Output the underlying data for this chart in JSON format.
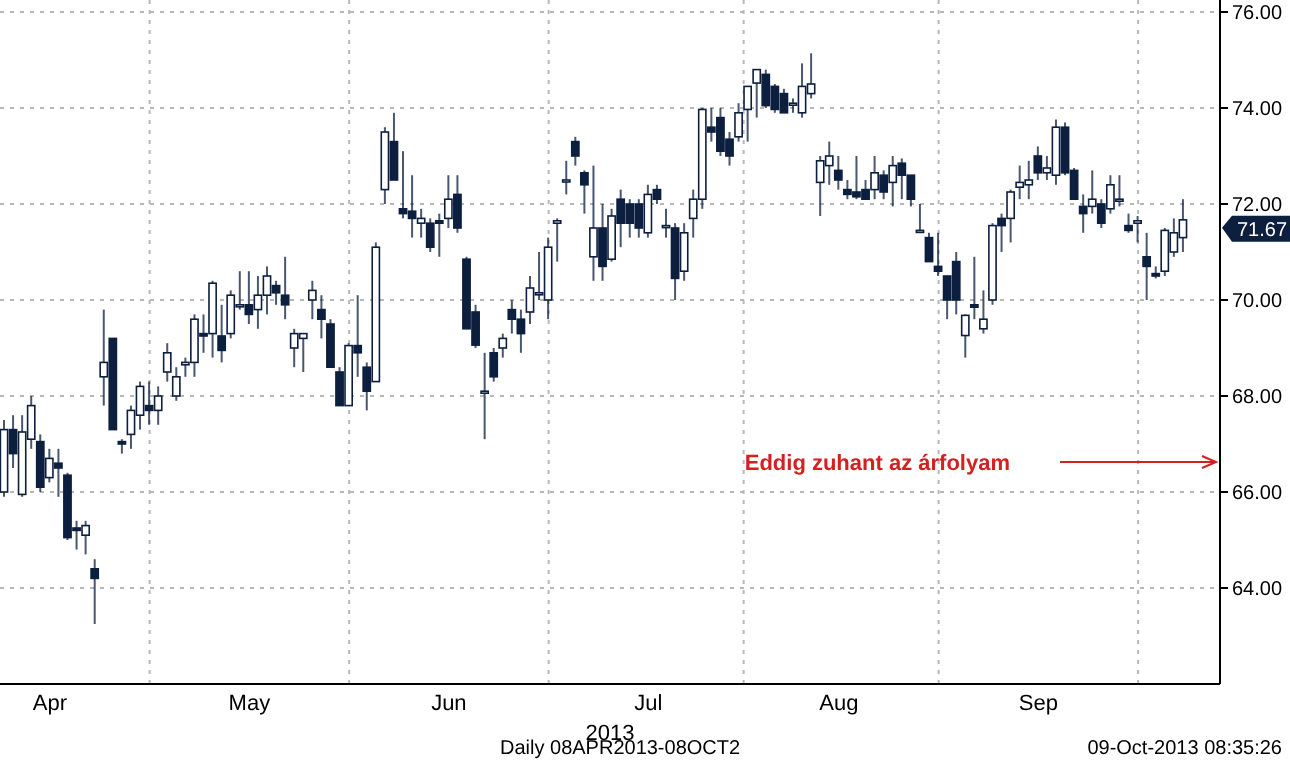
{
  "chart_data": {
    "type": "candlestick",
    "xlabel": "2013",
    "categories": [
      null,
      null,
      null,
      null,
      null,
      "Apr",
      null,
      null,
      null,
      null,
      null,
      null,
      null,
      null,
      null,
      null,
      null,
      null,
      null,
      null,
      null,
      null,
      null,
      null,
      null,
      null,
      null,
      "May",
      null,
      null,
      null,
      null,
      null,
      null,
      null,
      null,
      null,
      null,
      null,
      null,
      null,
      null,
      null,
      null,
      null,
      null,
      null,
      null,
      null,
      "Jun",
      null,
      null,
      null,
      null,
      null,
      null,
      null,
      null,
      null,
      null,
      null,
      null,
      null,
      null,
      null,
      null,
      null,
      null,
      null,
      null,
      null,
      "Jul",
      null,
      null,
      null,
      null,
      null,
      null,
      null,
      null,
      null,
      null,
      null,
      null,
      null,
      null,
      null,
      null,
      null,
      null,
      null,
      null,
      "Aug",
      null,
      null,
      null,
      null,
      null,
      null,
      null,
      null,
      null,
      null,
      null,
      null,
      null,
      null,
      null,
      null,
      null,
      null,
      null,
      null,
      null,
      "Sep",
      null,
      null,
      null,
      null,
      null,
      null,
      null,
      null,
      null,
      null,
      null,
      null,
      null,
      null,
      null,
      null
    ],
    "ohlc": [
      [
        66.0,
        67.5,
        65.9,
        67.3
      ],
      [
        67.3,
        67.6,
        66.5,
        66.8
      ],
      [
        65.95,
        67.6,
        65.9,
        67.25
      ],
      [
        67.1,
        68.0,
        66.9,
        67.8
      ],
      [
        67.05,
        67.2,
        66.0,
        66.1
      ],
      [
        66.3,
        66.9,
        66.2,
        66.7
      ],
      [
        66.6,
        66.9,
        65.9,
        66.5
      ],
      [
        66.35,
        66.4,
        65.0,
        65.05
      ],
      [
        65.25,
        65.4,
        64.8,
        65.2
      ],
      [
        65.1,
        65.4,
        64.7,
        65.3
      ],
      [
        64.4,
        64.6,
        63.25,
        64.2
      ],
      [
        68.4,
        69.8,
        67.8,
        68.7
      ],
      [
        69.2,
        69.2,
        67.3,
        67.3
      ],
      [
        67.05,
        67.1,
        66.8,
        67.0
      ],
      [
        67.2,
        67.8,
        66.9,
        67.7
      ],
      [
        67.6,
        68.3,
        67.3,
        68.2
      ],
      [
        67.8,
        68.3,
        67.4,
        67.7
      ],
      [
        67.7,
        68.2,
        67.4,
        68.0
      ],
      [
        68.5,
        69.1,
        68.3,
        68.9
      ],
      [
        68.0,
        68.6,
        67.9,
        68.4
      ],
      [
        68.65,
        68.8,
        68.4,
        68.7
      ],
      [
        68.7,
        69.7,
        68.4,
        69.6
      ],
      [
        69.3,
        69.7,
        68.9,
        69.25
      ],
      [
        69.3,
        70.4,
        68.8,
        70.35
      ],
      [
        69.25,
        69.9,
        68.7,
        68.95
      ],
      [
        69.3,
        70.2,
        69.2,
        70.1
      ],
      [
        69.9,
        70.6,
        69.8,
        69.9
      ],
      [
        69.9,
        70.6,
        69.5,
        69.7
      ],
      [
        69.8,
        70.5,
        69.4,
        70.1
      ],
      [
        70.1,
        70.7,
        69.7,
        70.5
      ],
      [
        70.3,
        70.4,
        69.9,
        70.15
      ],
      [
        70.1,
        70.9,
        69.6,
        69.9
      ],
      [
        69.0,
        69.4,
        68.6,
        69.3
      ],
      [
        69.2,
        69.3,
        68.5,
        69.3
      ],
      [
        70.0,
        70.4,
        69.6,
        70.2
      ],
      [
        69.8,
        70.1,
        69.2,
        69.6
      ],
      [
        69.5,
        69.6,
        68.6,
        68.6
      ],
      [
        68.5,
        68.6,
        67.8,
        67.8
      ],
      [
        67.8,
        69.1,
        67.8,
        69.05
      ],
      [
        69.05,
        70.1,
        68.4,
        68.9
      ],
      [
        68.6,
        68.7,
        67.7,
        68.1
      ],
      [
        68.3,
        71.2,
        68.3,
        71.1
      ],
      [
        72.3,
        73.6,
        72.0,
        73.5
      ],
      [
        73.3,
        73.9,
        72.5,
        72.5
      ],
      [
        71.9,
        73.1,
        71.7,
        71.8
      ],
      [
        71.85,
        72.6,
        71.3,
        71.7
      ],
      [
        71.6,
        71.9,
        71.3,
        71.7
      ],
      [
        71.6,
        71.7,
        71.0,
        71.1
      ],
      [
        71.65,
        71.8,
        70.9,
        71.6
      ],
      [
        71.7,
        72.6,
        71.5,
        72.1
      ],
      [
        72.2,
        72.6,
        71.4,
        71.5
      ],
      [
        70.85,
        70.9,
        69.4,
        69.4
      ],
      [
        69.75,
        69.9,
        69.0,
        69.06
      ],
      [
        68.1,
        68.9,
        67.1,
        68.1
      ],
      [
        68.9,
        69.0,
        68.3,
        68.4
      ],
      [
        69.0,
        69.3,
        68.8,
        69.2
      ],
      [
        69.8,
        70.0,
        69.3,
        69.6
      ],
      [
        69.6,
        69.8,
        68.9,
        69.3
      ],
      [
        69.75,
        70.5,
        69.5,
        70.25
      ],
      [
        70.15,
        71.0,
        70.0,
        70.15
      ],
      [
        70.0,
        71.3,
        69.6,
        71.1
      ],
      [
        71.6,
        71.7,
        70.8,
        71.65
      ],
      [
        72.5,
        72.9,
        72.2,
        72.5
      ],
      [
        73.3,
        73.4,
        72.8,
        73.0
      ],
      [
        72.65,
        72.7,
        71.8,
        72.4
      ],
      [
        70.9,
        72.8,
        70.4,
        71.5
      ],
      [
        71.5,
        72.0,
        70.4,
        70.7
      ],
      [
        70.85,
        71.9,
        70.8,
        71.75
      ],
      [
        72.1,
        72.3,
        71.1,
        71.6
      ],
      [
        72.0,
        72.1,
        71.3,
        71.6
      ],
      [
        72.0,
        72.1,
        71.3,
        71.5
      ],
      [
        71.4,
        72.4,
        71.3,
        72.2
      ],
      [
        72.3,
        72.4,
        72.0,
        72.1
      ],
      [
        71.55,
        71.9,
        71.3,
        71.55
      ],
      [
        71.5,
        71.6,
        70.0,
        70.45
      ],
      [
        70.6,
        71.6,
        70.4,
        71.4
      ],
      [
        71.7,
        72.3,
        71.3,
        72.1
      ],
      [
        72.1,
        74.0,
        71.9,
        73.97
      ],
      [
        73.6,
        74.0,
        73.3,
        73.5
      ],
      [
        73.8,
        74.0,
        73.0,
        73.1
      ],
      [
        73.35,
        73.5,
        72.8,
        73.0
      ],
      [
        73.4,
        74.1,
        73.3,
        73.9
      ],
      [
        73.97,
        74.45,
        73.3,
        74.45
      ],
      [
        74.52,
        74.8,
        73.8,
        74.8
      ],
      [
        74.7,
        74.8,
        74.0,
        74.05
      ],
      [
        74.45,
        74.5,
        73.9,
        73.97
      ],
      [
        74.3,
        74.4,
        73.9,
        73.9
      ],
      [
        74.1,
        74.2,
        73.9,
        74.1
      ],
      [
        73.9,
        74.93,
        73.8,
        74.45
      ],
      [
        74.3,
        75.14,
        74.2,
        74.5
      ],
      [
        72.45,
        73.0,
        71.75,
        72.9
      ],
      [
        72.8,
        73.3,
        72.4,
        73.0
      ],
      [
        72.7,
        73.0,
        72.3,
        72.5
      ],
      [
        72.3,
        72.5,
        72.1,
        72.2
      ],
      [
        72.25,
        73.0,
        72.1,
        72.15
      ],
      [
        72.3,
        72.5,
        72.1,
        72.1
      ],
      [
        72.3,
        73.0,
        72.1,
        72.65
      ],
      [
        72.6,
        72.7,
        72.1,
        72.25
      ],
      [
        72.45,
        73.0,
        71.95,
        72.8
      ],
      [
        72.85,
        72.95,
        72.1,
        72.6
      ],
      [
        72.6,
        72.6,
        71.95,
        72.1
      ],
      [
        71.45,
        72.0,
        71.4,
        71.45
      ],
      [
        71.3,
        71.4,
        70.8,
        70.8
      ],
      [
        70.7,
        71.4,
        70.5,
        70.6
      ],
      [
        70.5,
        70.5,
        69.6,
        70.0
      ],
      [
        70.8,
        71.0,
        69.7,
        70.0
      ],
      [
        69.26,
        69.7,
        68.8,
        69.68
      ],
      [
        69.9,
        70.9,
        69.6,
        69.85
      ],
      [
        69.4,
        70.2,
        69.3,
        69.6
      ],
      [
        70.0,
        71.6,
        69.9,
        71.55
      ],
      [
        71.7,
        71.8,
        71.0,
        71.55
      ],
      [
        71.7,
        72.3,
        71.2,
        72.25
      ],
      [
        72.35,
        72.8,
        72.1,
        72.45
      ],
      [
        72.4,
        72.9,
        72.1,
        72.5
      ],
      [
        73.0,
        73.2,
        72.5,
        72.65
      ],
      [
        72.65,
        73.0,
        72.5,
        72.75
      ],
      [
        72.6,
        73.76,
        72.4,
        73.6
      ],
      [
        73.6,
        73.7,
        72.6,
        72.65
      ],
      [
        72.7,
        72.75,
        72.1,
        72.1
      ],
      [
        71.95,
        72.2,
        71.4,
        71.8
      ],
      [
        71.95,
        72.7,
        71.8,
        72.1
      ],
      [
        72.0,
        72.1,
        71.5,
        71.6
      ],
      [
        71.9,
        72.6,
        71.8,
        72.4
      ],
      [
        72.1,
        72.6,
        71.95,
        72.1
      ],
      [
        71.55,
        71.8,
        71.4,
        71.45
      ],
      [
        71.6,
        71.75,
        71.2,
        71.65
      ],
      [
        70.9,
        71.4,
        70.0,
        70.7
      ],
      [
        70.55,
        70.7,
        70.45,
        70.5
      ],
      [
        70.6,
        71.5,
        70.5,
        71.45
      ],
      [
        71.0,
        71.7,
        70.9,
        71.4
      ],
      [
        71.3,
        72.1,
        71.0,
        71.67
      ]
    ],
    "color": "#0c1f3f",
    "ylim": [
      62,
      76.25
    ],
    "yticks": [
      {
        "value": 64,
        "label": "64.00"
      },
      {
        "value": 66,
        "label": "66.00"
      },
      {
        "value": 68,
        "label": "68.00"
      },
      {
        "value": 70,
        "label": "70.00"
      },
      {
        "value": 72,
        "label": "72.00"
      },
      {
        "value": 74,
        "label": "74.00"
      },
      {
        "value": 76,
        "label": "76.00"
      }
    ],
    "grid": true,
    "annotations": [
      "Eddig zuhant az árfolyam",
      "71.67",
      "Daily 08APR2013-08OCT2",
      "09-Oct-2013 08:35:26"
    ]
  }
}
